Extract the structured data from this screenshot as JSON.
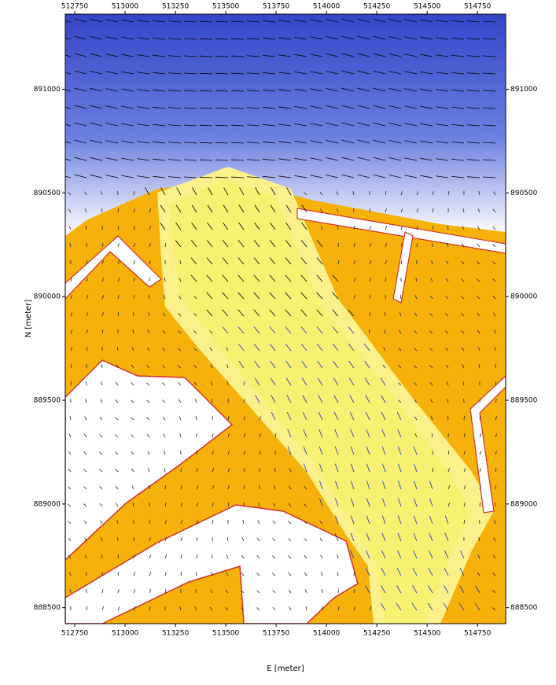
{
  "chart_data": {
    "type": "map",
    "x_label": "E [meter]",
    "y_label": "N [meter]",
    "xlim": [
      512703,
      514890
    ],
    "ylim": [
      888423,
      891362
    ],
    "xticks": [
      512750,
      513000,
      513250,
      513500,
      513750,
      514000,
      514250,
      514500,
      514750
    ],
    "yticks": [
      888500,
      889000,
      889500,
      890000,
      890500,
      891000
    ]
  }
}
